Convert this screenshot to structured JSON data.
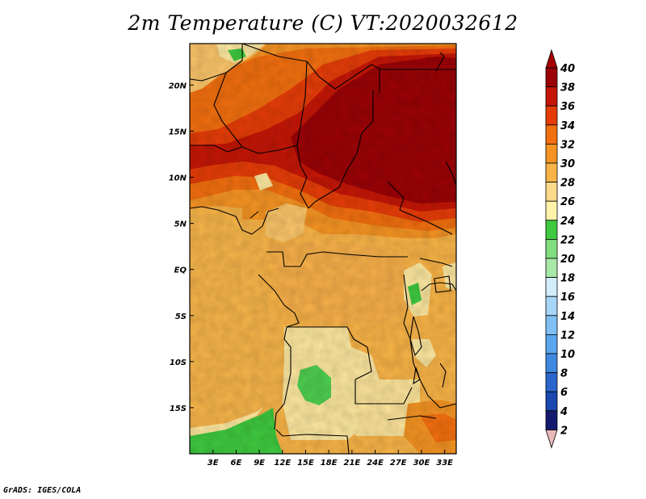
{
  "title": "2m Temperature (C) VT:2020032612",
  "footer": "GrADS: IGES/COLA",
  "map": {
    "variable": "2m Temperature",
    "units": "C",
    "valid_time": "2020032612",
    "lon_range": [
      0,
      34.5
    ],
    "lat_range": [
      -20,
      24.5
    ],
    "lon_ticks": [
      "3E",
      "6E",
      "9E",
      "12E",
      "15E",
      "18E",
      "21E",
      "24E",
      "27E",
      "30E",
      "33E"
    ],
    "lat_ticks": [
      "20N",
      "15N",
      "10N",
      "5N",
      "EQ",
      "5S",
      "10S",
      "15S"
    ]
  },
  "colorbar": {
    "labels": [
      "40",
      "38",
      "36",
      "34",
      "32",
      "30",
      "28",
      "26",
      "24",
      "22",
      "20",
      "18",
      "16",
      "14",
      "12",
      "10",
      "8",
      "6",
      "4",
      "2"
    ],
    "colors": [
      "#e9b9b9",
      "#131a6e",
      "#1a47b0",
      "#2b66cc",
      "#3e88e0",
      "#5aa5ec",
      "#7fbff3",
      "#a6d6f8",
      "#d4edfb",
      "#a8e8a8",
      "#80dd80",
      "#3fca3f",
      "#fff3aa",
      "#fdd98a",
      "#f9b447",
      "#f59423",
      "#f26f0f",
      "#e63d08",
      "#c41606",
      "#9b0206",
      "#a50000"
    ]
  }
}
